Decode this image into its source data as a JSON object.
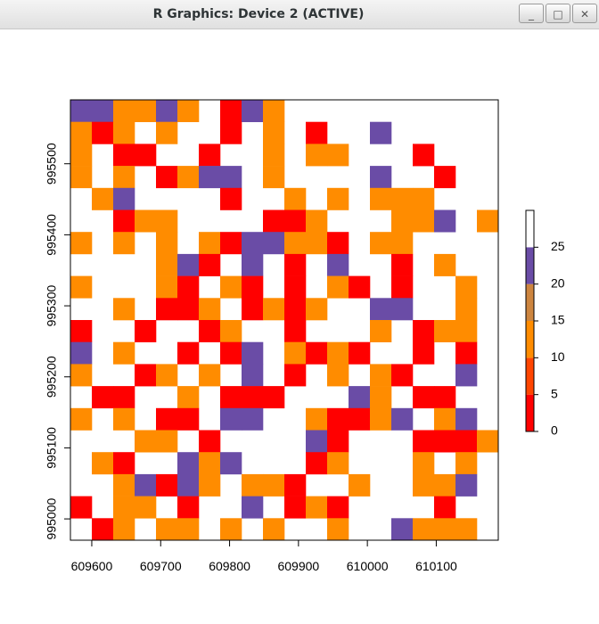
{
  "window": {
    "title": "R Graphics: Device 2 (ACTIVE)",
    "minimize_glyph": "_",
    "maximize_glyph": "□",
    "close_glyph": "✕"
  },
  "chart_data": {
    "type": "heatmap",
    "title": "",
    "xlabel": "",
    "ylabel": "",
    "x_ticks": [
      609600,
      609700,
      609800,
      609900,
      610000,
      610100
    ],
    "y_ticks": [
      995000,
      995100,
      995200,
      995300,
      995400,
      995500
    ],
    "xlim": [
      609569,
      610190
    ],
    "ylim": [
      994970,
      995590
    ],
    "cell_size": 30,
    "legend": {
      "position": "right",
      "ticks": [
        0,
        5,
        10,
        15,
        20,
        25
      ],
      "breaks": [
        0,
        5,
        10,
        15,
        20,
        25,
        30
      ]
    },
    "colors": {
      "class_colors": [
        "#ff0000",
        "#ff4500",
        "#ff8c00",
        "#cd853f",
        "#6a4ca6",
        "#ffffff"
      ],
      "plot_border": "#000000"
    },
    "grid_codes": [
      "PEEDPCAC53E35",
      "ZDCZCDZCCZA",
      "ZAAAZAAAAAZAA",
      "ZBDCCDEBCBPA",
      "ZZCADEAEDEAZA",
      "ZZCZZCAZDCAC",
      "ZZCAZZCZDCAZ",
      "CEAAZZCZZAADCC",
      "EAZAZZZZZZAZC",
      "AZZZAEACZCZZZ"
    ],
    "grid": [
      "PPOOPOSMPOAAA",
      "OMOAODZMTOAMZAP",
      "OAMMZZMAZOAOOAAAM",
      "OAOAMOPPAOAAAAPAAM",
      "AOPAAAAMAAOAOAOOOAA",
      "AAMOOAAAAMMOAAAOOPAO",
      "OAOAOAOMPPOOMAOOAAAA",
      "AAAAOPMAPAMAPAAMAOAA",
      "OAAAOMAOMAMAOMAMAAO",
      "AAOAMMOAMOMOAAPPAAO",
      "MAAMAAMOAAMAAAOAMOO",
      "PAOAAMAMPAOMOMAAMAM",
      "OAAMOAOAPAMAOAOMAAP",
      "AMMAAOAMMMAAAPOAMMA",
      "OAOAMMAPPAAOMMOPAOP",
      "AAAOOAMAAAAPMAAAMMMO",
      "AOMAAPOPAAAMOAAAOAO",
      "AAOPMPOAOOMAAOAAOOP",
      "MAOOAMAAPAMOMAAAAM",
      "AMOAOOAOAOAAOAAPOOO"
    ]
  }
}
